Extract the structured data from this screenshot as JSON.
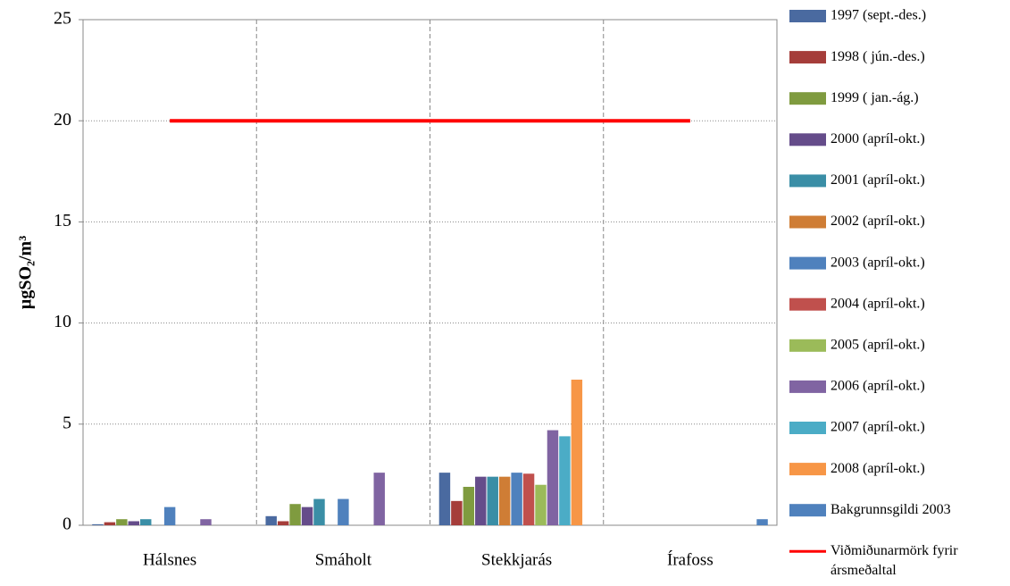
{
  "chart_data": {
    "type": "bar",
    "y_label": "µgSO₂/m³",
    "categories": [
      "Hálsnes",
      "Smáholt",
      "Stekkjarás",
      "Írafoss"
    ],
    "ylim": [
      0,
      25
    ],
    "yticks": [
      0,
      5,
      10,
      15,
      20,
      25
    ],
    "grid": true,
    "series": [
      {
        "name": "1997 (sept.-des.)",
        "color": "#4a6aa0",
        "values": [
          0.05,
          0.45,
          2.6,
          null
        ]
      },
      {
        "name": "1998 ( jún.-des.)",
        "color": "#a53d3a",
        "values": [
          0.15,
          0.2,
          1.2,
          null
        ]
      },
      {
        "name": "1999 ( jan.-ág.)",
        "color": "#7f9b3f",
        "values": [
          0.3,
          1.05,
          1.9,
          null
        ]
      },
      {
        "name": "2000 (apríl-okt.)",
        "color": "#654c8a",
        "values": [
          0.2,
          0.9,
          2.4,
          null
        ]
      },
      {
        "name": "2001 (apríl-okt.)",
        "color": "#3a8ea6",
        "values": [
          0.3,
          1.3,
          2.4,
          null
        ]
      },
      {
        "name": "2002 (apríl-okt.)",
        "color": "#cf7d35",
        "values": [
          null,
          null,
          2.4,
          null
        ]
      },
      {
        "name": "2003 (apríl-okt.)",
        "color": "#4f81bd",
        "values": [
          0.9,
          1.3,
          2.6,
          null
        ]
      },
      {
        "name": "2004 (apríl-okt.)",
        "color": "#c0504d",
        "values": [
          null,
          null,
          2.55,
          null
        ]
      },
      {
        "name": "2005 (apríl-okt.)",
        "color": "#9bbb59",
        "values": [
          null,
          null,
          2.0,
          null
        ]
      },
      {
        "name": "2006 (apríl-okt.)",
        "color": "#8064a2",
        "values": [
          0.3,
          2.6,
          4.7,
          null
        ]
      },
      {
        "name": "2007 (apríl-okt.)",
        "color": "#4bacc6",
        "values": [
          null,
          null,
          4.4,
          null
        ]
      },
      {
        "name": "2008 (apríl-okt.)",
        "color": "#f79646",
        "values": [
          null,
          null,
          7.2,
          null
        ]
      },
      {
        "name": "Bakgrunnsgildi 2003",
        "color": "#4f81bd",
        "values": [
          null,
          null,
          null,
          0.3
        ]
      },
      {
        "name": "Viðmiðunarmörk fyrir ársmeðaltal",
        "color": "#ff0000",
        "type": "line",
        "values": [
          20,
          20,
          20,
          20
        ]
      }
    ]
  }
}
